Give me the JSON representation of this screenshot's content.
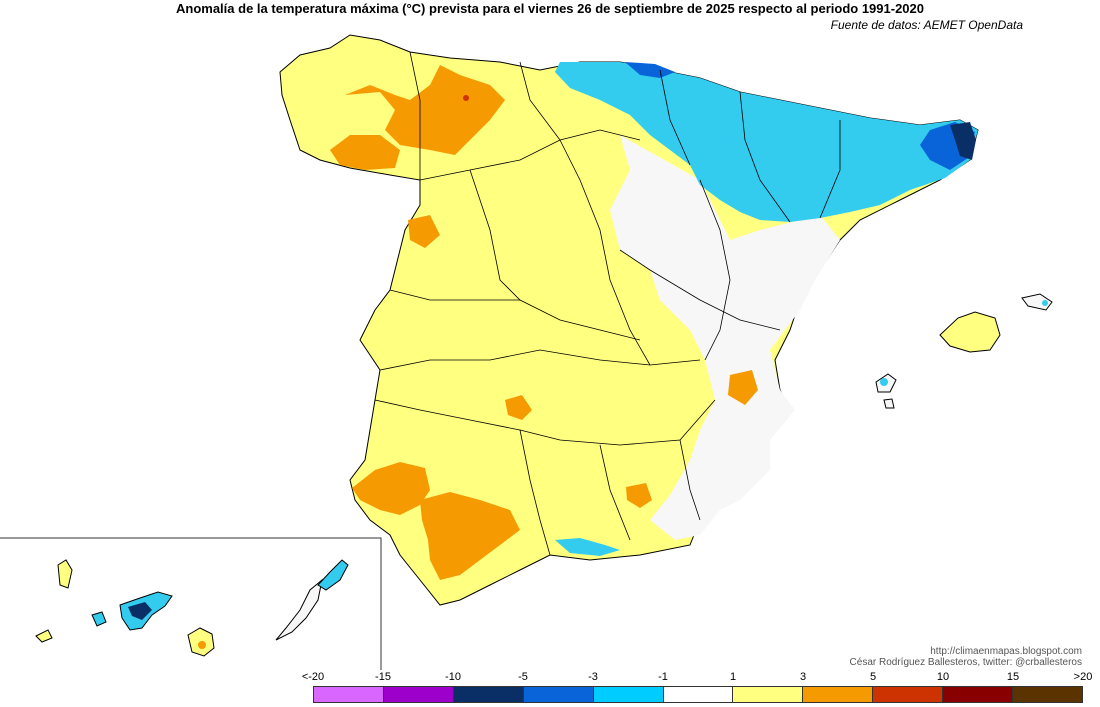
{
  "title": "Anomalía de la temperatura máxima (°C) prevista para el viernes 26 de septiembre de 2025 respecto al periodo 1991-2020",
  "source": "Fuente de datos: AEMET OpenData",
  "credits": {
    "url": "http://climaenmapas.blogspot.com",
    "author": "César Rodríguez Ballesteros, twitter: @crballesteros"
  },
  "legend": {
    "ticks": [
      "<-20",
      "-15",
      "-10",
      "-5",
      "-3",
      "-1",
      "1",
      "3",
      "5",
      "10",
      "15",
      ">20"
    ],
    "colors": [
      "#d966ff",
      "#9e00cc",
      "#0a2f66",
      "#0a64d9",
      "#00ccff",
      "#ffffff",
      "#ffff80",
      "#f59a00",
      "#cc3300",
      "#880000",
      "#5a3300"
    ]
  },
  "map_colors": {
    "very_warm": "#f59a00",
    "warm": "#ffff80",
    "neutral": "#f7f7f7",
    "cool": "#33ccee",
    "cold": "#0a64d9",
    "very_cold": "#0a2f66",
    "hot": "#cc3300"
  }
}
